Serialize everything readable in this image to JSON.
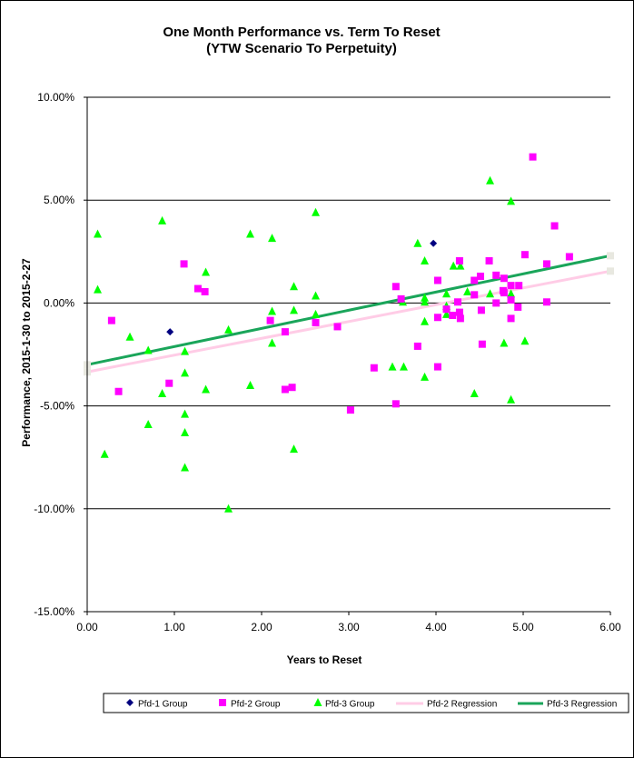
{
  "chart_data": {
    "type": "scatter",
    "title": [
      "One Month Performance vs. Term To Reset",
      "(YTW Scenario To Perpetuity)"
    ],
    "xlabel": "Years to Reset",
    "ylabel": "Performance, 2015-1-30  to 2015-2-27",
    "xlim": [
      0,
      6
    ],
    "ylim": [
      -15,
      10
    ],
    "x_ticks": [
      0,
      1,
      2,
      3,
      4,
      5,
      6
    ],
    "x_tick_labels": [
      "0.00",
      "1.00",
      "2.00",
      "3.00",
      "4.00",
      "5.00",
      "6.00"
    ],
    "y_ticks": [
      10,
      5,
      0,
      -5,
      -10,
      -15
    ],
    "y_tick_labels": [
      "10.00%",
      "5.00%",
      "0.00%",
      "-5.00%",
      "-10.00%",
      "-15.00%"
    ],
    "grid": "horizontal",
    "legend_position": "bottom",
    "series": [
      {
        "name": "Pfd-1 Group",
        "marker": "diamond",
        "color": "#000080",
        "points": [
          [
            0.95,
            -1.4
          ],
          [
            3.97,
            2.9
          ]
        ]
      },
      {
        "name": "Pfd-2 Group",
        "marker": "square",
        "color": "#ff00ff",
        "points": [
          [
            0.28,
            -0.85
          ],
          [
            0.36,
            -4.3
          ],
          [
            0.94,
            -3.9
          ],
          [
            1.11,
            1.9
          ],
          [
            1.27,
            0.7
          ],
          [
            1.35,
            0.55
          ],
          [
            2.1,
            -0.85
          ],
          [
            2.27,
            -1.4
          ],
          [
            2.27,
            -4.2
          ],
          [
            2.35,
            -4.1
          ],
          [
            2.62,
            -0.95
          ],
          [
            2.87,
            -1.15
          ],
          [
            3.02,
            -5.2
          ],
          [
            3.29,
            -3.15
          ],
          [
            3.54,
            0.8
          ],
          [
            3.54,
            -4.9
          ],
          [
            3.6,
            0.2
          ],
          [
            3.79,
            -2.1
          ],
          [
            4.02,
            1.1
          ],
          [
            4.02,
            -0.7
          ],
          [
            4.02,
            -3.1
          ],
          [
            4.12,
            -0.3
          ],
          [
            4.19,
            -0.6
          ],
          [
            4.27,
            2.05
          ],
          [
            4.25,
            0.05
          ],
          [
            4.27,
            -0.45
          ],
          [
            4.28,
            -0.75
          ],
          [
            4.44,
            1.1
          ],
          [
            4.44,
            0.4
          ],
          [
            4.51,
            1.3
          ],
          [
            4.52,
            -0.35
          ],
          [
            4.53,
            -2.0
          ],
          [
            4.61,
            2.05
          ],
          [
            4.69,
            1.35
          ],
          [
            4.69,
            0.0
          ],
          [
            4.77,
            0.6
          ],
          [
            4.78,
            1.2
          ],
          [
            4.78,
            0.5
          ],
          [
            4.86,
            0.85
          ],
          [
            4.86,
            0.15
          ],
          [
            4.86,
            -0.75
          ],
          [
            4.94,
            -0.2
          ],
          [
            4.95,
            0.85
          ],
          [
            5.02,
            2.35
          ],
          [
            5.11,
            7.1
          ],
          [
            5.27,
            1.9
          ],
          [
            5.27,
            0.05
          ],
          [
            5.36,
            3.75
          ],
          [
            5.53,
            2.25
          ]
        ]
      },
      {
        "name": "Pfd-3 Group",
        "marker": "triangle",
        "color": "#00ff00",
        "points": [
          [
            0.12,
            3.35
          ],
          [
            0.12,
            0.65
          ],
          [
            0.2,
            -7.35
          ],
          [
            0.49,
            -1.65
          ],
          [
            0.7,
            -2.3
          ],
          [
            0.7,
            -5.9
          ],
          [
            0.86,
            4.0
          ],
          [
            0.86,
            -4.4
          ],
          [
            1.12,
            -2.35
          ],
          [
            1.12,
            -3.4
          ],
          [
            1.12,
            -5.4
          ],
          [
            1.12,
            -6.3
          ],
          [
            1.12,
            -8.0
          ],
          [
            1.36,
            1.5
          ],
          [
            1.36,
            -4.2
          ],
          [
            1.62,
            -1.3
          ],
          [
            1.62,
            -10.0
          ],
          [
            1.87,
            3.35
          ],
          [
            1.87,
            -4.0
          ],
          [
            2.12,
            3.15
          ],
          [
            2.12,
            -0.4
          ],
          [
            2.12,
            -1.95
          ],
          [
            2.37,
            0.8
          ],
          [
            2.37,
            -0.35
          ],
          [
            2.37,
            -7.1
          ],
          [
            2.62,
            4.4
          ],
          [
            2.62,
            0.35
          ],
          [
            2.62,
            -0.55
          ],
          [
            3.62,
            0.05
          ],
          [
            3.5,
            -3.1
          ],
          [
            3.63,
            -3.1
          ],
          [
            3.79,
            2.9
          ],
          [
            3.87,
            2.05
          ],
          [
            3.87,
            0.25
          ],
          [
            3.87,
            0.05
          ],
          [
            3.87,
            -0.9
          ],
          [
            3.87,
            -3.6
          ],
          [
            4.12,
            0.45
          ],
          [
            4.12,
            -0.15
          ],
          [
            4.12,
            -0.55
          ],
          [
            4.2,
            1.8
          ],
          [
            4.28,
            1.8
          ],
          [
            4.36,
            0.55
          ],
          [
            4.44,
            -4.4
          ],
          [
            4.62,
            5.95
          ],
          [
            4.62,
            0.45
          ],
          [
            4.78,
            -1.95
          ],
          [
            4.86,
            4.95
          ],
          [
            4.86,
            0.45
          ],
          [
            4.86,
            -4.7
          ],
          [
            5.02,
            -1.85
          ]
        ]
      }
    ],
    "regressions": [
      {
        "name": "Pfd-2 Regression",
        "color": "#ffcce6",
        "x": [
          0,
          6
        ],
        "y": [
          -3.35,
          1.55
        ]
      },
      {
        "name": "Pfd-3 Regression",
        "color": "#1aa55a",
        "x": [
          0,
          6
        ],
        "y": [
          -3.0,
          2.3
        ]
      }
    ],
    "legend": [
      "Pfd-1 Group",
      "Pfd-2 Group",
      "Pfd-3 Group",
      "Pfd-2 Regression",
      "Pfd-3 Regression"
    ]
  }
}
